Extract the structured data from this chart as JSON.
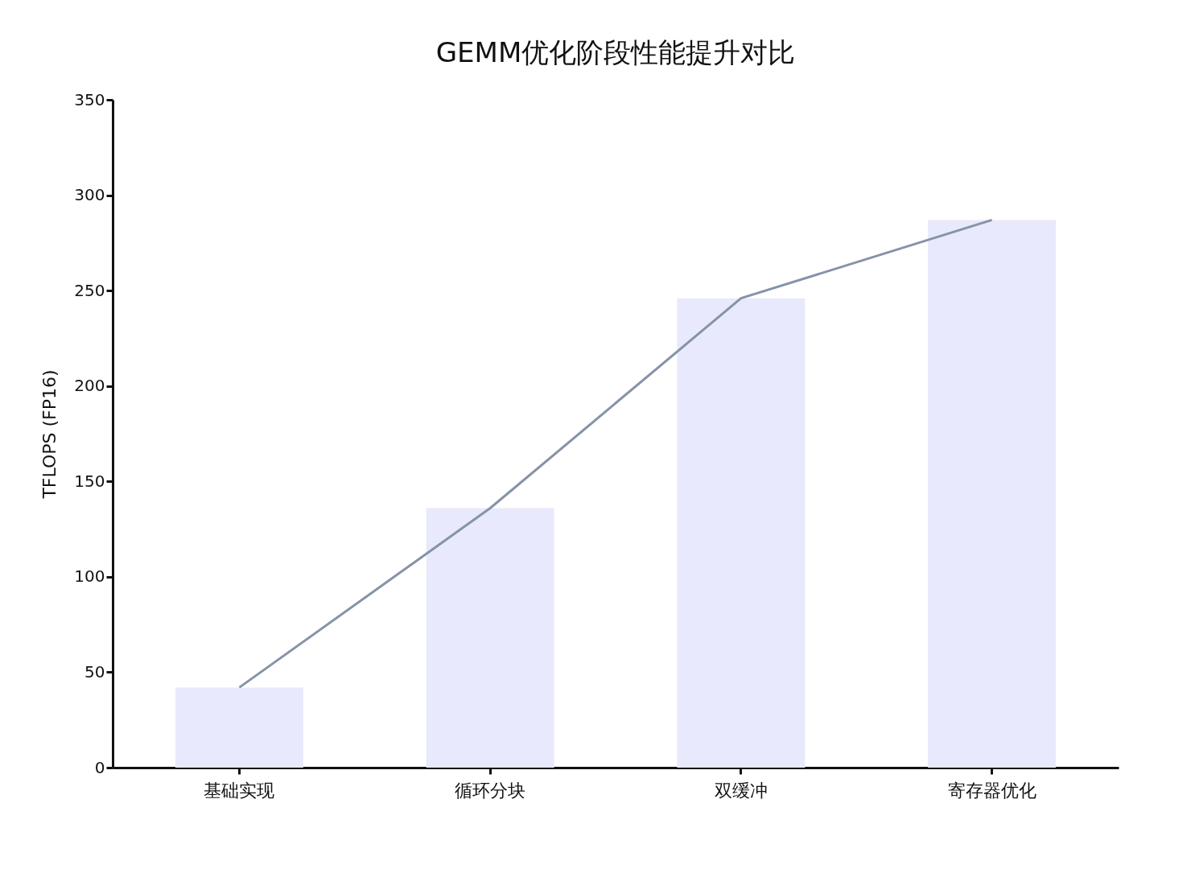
{
  "chart_data": {
    "type": "bar",
    "title": "GEMM优化阶段性能提升对比",
    "ylabel": "TFLOPS (FP16)",
    "categories": [
      "基础实现",
      "循环分块",
      "双缓冲",
      "寄存器优化"
    ],
    "series": [
      {
        "color": "#e9e9fd",
        "values": [
          42,
          136,
          246,
          287
        ]
      },
      {
        "type": "line",
        "color": "#8693a8",
        "values": [
          42,
          136,
          246,
          287
        ]
      }
    ],
    "ylim": [
      0,
      350
    ],
    "yticks": [
      0,
      50,
      100,
      150,
      200,
      250,
      300,
      350
    ],
    "grid": false
  }
}
